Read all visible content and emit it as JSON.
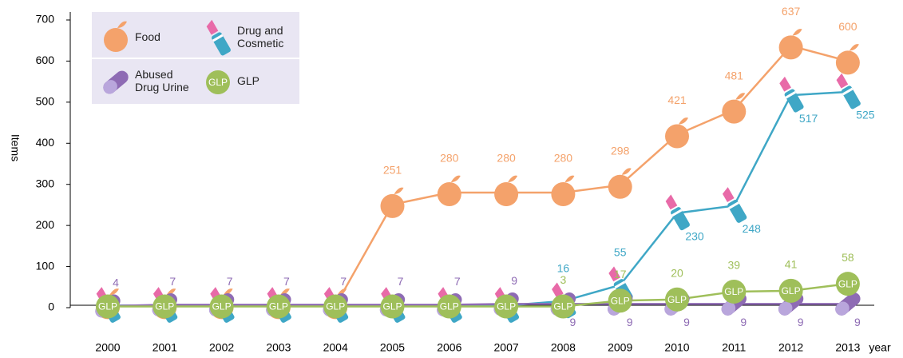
{
  "chart_data": {
    "type": "line",
    "categories": [
      "2000",
      "2001",
      "2002",
      "2003",
      "2004",
      "2005",
      "2006",
      "2007",
      "2008",
      "2009",
      "2010",
      "2011",
      "2012",
      "2013"
    ],
    "series": [
      {
        "name": "Food",
        "color": "#f4a26b",
        "marker": "apple",
        "values": [
          5,
          5,
          5,
          5,
          5,
          251,
          280,
          280,
          280,
          298,
          421,
          481,
          637,
          600
        ],
        "value_labels": [
          null,
          null,
          null,
          null,
          null,
          "251",
          "280",
          "280",
          "280",
          "298",
          "421",
          "481",
          "637",
          "600"
        ]
      },
      {
        "name": "Drug and Cosmetic",
        "color": "#3fa7c6",
        "marker": "lipstick",
        "values": [
          5,
          5,
          5,
          5,
          5,
          5,
          5,
          5,
          16,
          55,
          230,
          248,
          517,
          525
        ],
        "value_labels": [
          null,
          null,
          null,
          null,
          null,
          null,
          null,
          null,
          "16",
          "55",
          "230",
          "248",
          "517",
          "525"
        ]
      },
      {
        "name": "Abused Drug Urine",
        "color": "#8e6bb4",
        "marker": "pill",
        "values": [
          4,
          7,
          7,
          7,
          7,
          7,
          7,
          9,
          9,
          9,
          9,
          9,
          9,
          9
        ],
        "value_labels": [
          "4",
          "7",
          "7",
          "7",
          "7",
          "7",
          "7",
          "9",
          "9",
          "9",
          "9",
          "9",
          "9",
          "9"
        ]
      },
      {
        "name": "GLP",
        "color": "#9fbf5a",
        "marker": "glp",
        "values": [
          3,
          3,
          3,
          3,
          3,
          3,
          3,
          3,
          3,
          17,
          20,
          39,
          41,
          58
        ],
        "value_labels": [
          null,
          null,
          null,
          null,
          null,
          null,
          null,
          null,
          "3",
          "17",
          "20",
          "39",
          "41",
          "58"
        ]
      }
    ],
    "ylabel": "Items",
    "xlabel": "year",
    "ylim": [
      0,
      700
    ],
    "yticks": [
      0,
      100,
      200,
      300,
      400,
      500,
      600,
      700
    ]
  }
}
